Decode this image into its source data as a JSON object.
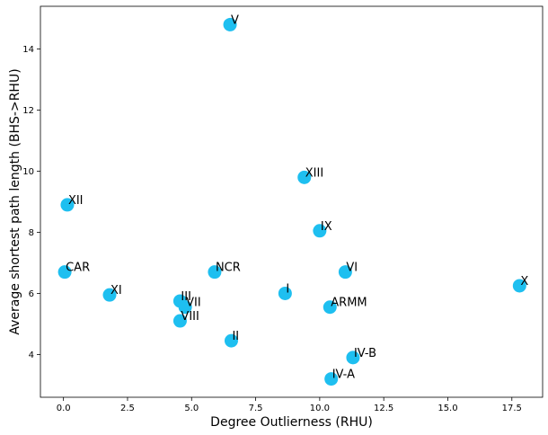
{
  "chart_data": {
    "type": "scatter",
    "xlabel": "Degree Outlierness (RHU)",
    "ylabel": "Average shortest path length (BHS->RHU)",
    "xlim": [
      -0.9,
      18.7
    ],
    "ylim": [
      2.6,
      15.4
    ],
    "xticks": [
      0.0,
      2.5,
      5.0,
      7.5,
      10.0,
      12.5,
      15.0,
      17.5
    ],
    "xtick_labels": [
      "0.0",
      "2.5",
      "5.0",
      "7.5",
      "10.0",
      "12.5",
      "15.0",
      "17.5"
    ],
    "yticks": [
      4,
      6,
      8,
      10,
      12,
      14
    ],
    "ytick_labels": [
      "4",
      "6",
      "8",
      "10",
      "12",
      "14"
    ],
    "marker_color": "#1ebff0",
    "grid": false,
    "points": [
      {
        "label": "V",
        "x": 6.5,
        "y": 14.8
      },
      {
        "label": "XIII",
        "x": 9.4,
        "y": 9.8
      },
      {
        "label": "XII",
        "x": 0.15,
        "y": 8.9
      },
      {
        "label": "IX",
        "x": 10.0,
        "y": 8.05
      },
      {
        "label": "CAR",
        "x": 0.05,
        "y": 6.7
      },
      {
        "label": "NCR",
        "x": 5.9,
        "y": 6.7
      },
      {
        "label": "VI",
        "x": 11.0,
        "y": 6.7
      },
      {
        "label": "X",
        "x": 17.8,
        "y": 6.25
      },
      {
        "label": "XI",
        "x": 1.8,
        "y": 5.95
      },
      {
        "label": "I",
        "x": 8.65,
        "y": 6.0
      },
      {
        "label": "III",
        "x": 4.55,
        "y": 5.75
      },
      {
        "label": "VII",
        "x": 4.75,
        "y": 5.55
      },
      {
        "label": "ARMM",
        "x": 10.4,
        "y": 5.55
      },
      {
        "label": "VIII",
        "x": 4.55,
        "y": 5.1
      },
      {
        "label": "II",
        "x": 6.55,
        "y": 4.45
      },
      {
        "label": "IV-B",
        "x": 11.3,
        "y": 3.9
      },
      {
        "label": "IV-A",
        "x": 10.45,
        "y": 3.2
      }
    ]
  }
}
